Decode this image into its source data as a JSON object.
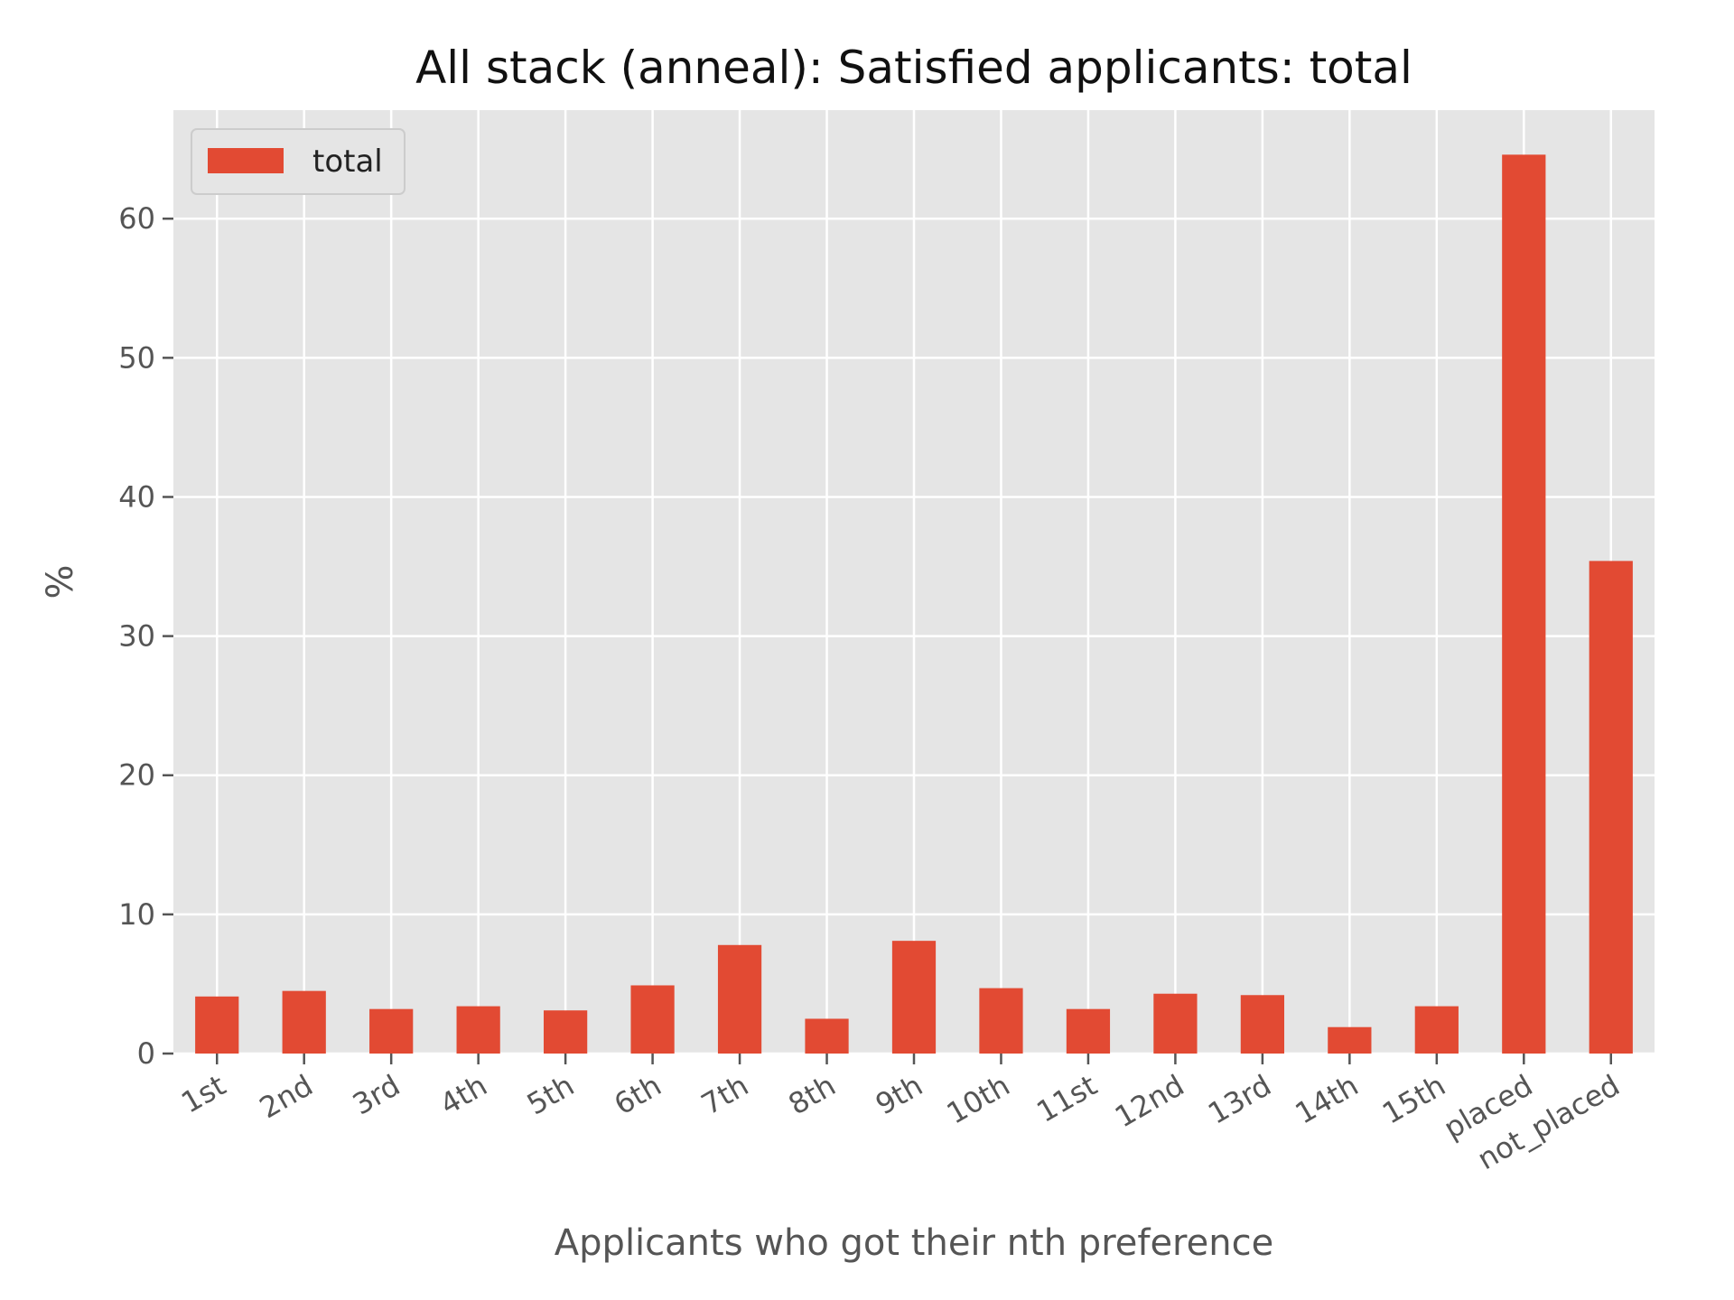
{
  "chart_data": {
    "type": "bar",
    "title": "All stack (anneal): Satisfied applicants: total",
    "xlabel": "Applicants who got their nth preference",
    "ylabel": "%",
    "categories": [
      "1st",
      "2nd",
      "3rd",
      "4th",
      "5th",
      "6th",
      "7th",
      "8th",
      "9th",
      "10th",
      "11st",
      "12nd",
      "13rd",
      "14th",
      "15th",
      "placed",
      "not_placed"
    ],
    "series": [
      {
        "name": "total",
        "values": [
          4.1,
          4.5,
          3.2,
          3.4,
          3.1,
          4.9,
          7.8,
          2.5,
          8.1,
          4.7,
          3.2,
          4.3,
          4.2,
          1.9,
          3.4,
          64.6,
          35.4
        ]
      }
    ],
    "yticks": [
      0,
      10,
      20,
      30,
      40,
      50,
      60
    ],
    "ylim": [
      0,
      67.8
    ],
    "grid": true,
    "legend": "upper-left",
    "colors": {
      "bar": "#E24A33",
      "plot_bg": "#E5E5E5",
      "grid": "#FFFFFF",
      "tick": "#555555"
    }
  }
}
